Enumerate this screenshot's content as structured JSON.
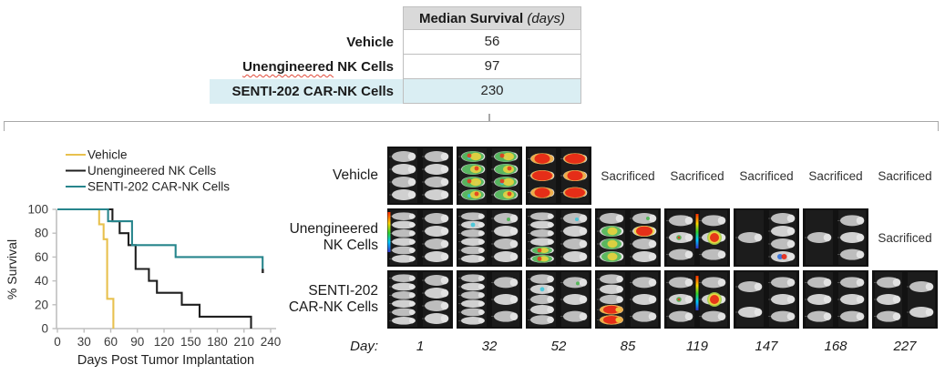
{
  "colors": {
    "vehicle": "#E8C14E",
    "unengineered": "#1f1f1f",
    "senti": "#27858C",
    "axis": "#bfbfbf",
    "tick_text": "#3a3a3a",
    "table_header_bg": "#D9D9D9",
    "table_highlight_bg": "#DAEEF3",
    "table_border": "#BFBFBF"
  },
  "table": {
    "header": {
      "title": "Median Survival",
      "unit": "(days)"
    },
    "rows": [
      {
        "label": "Vehicle",
        "value": "56",
        "highlight": false,
        "squiggle_word": ""
      },
      {
        "label": "Unengineered NK Cells",
        "value": "97",
        "highlight": false,
        "squiggle_word": "Unengineered"
      },
      {
        "label": "SENTI-202 CAR-NK Cells",
        "value": "230",
        "highlight": true,
        "squiggle_word": ""
      }
    ]
  },
  "chart_data": {
    "type": "line",
    "subtype": "kaplan-meier-step",
    "title": "",
    "xlabel": "Days Post Tumor Implantation",
    "ylabel": "% Survival",
    "xlim": [
      0,
      240
    ],
    "ylim": [
      0,
      100
    ],
    "xticks": [
      0,
      30,
      60,
      90,
      120,
      150,
      180,
      210,
      240
    ],
    "yticks": [
      0,
      20,
      40,
      60,
      80,
      100
    ],
    "grid": false,
    "legend_position": "top-left",
    "series": [
      {
        "name": "Vehicle",
        "color_key": "vehicle",
        "end_marker": false,
        "step_points": [
          [
            0,
            100
          ],
          [
            47,
            100
          ],
          [
            47,
            87.5
          ],
          [
            52,
            87.5
          ],
          [
            52,
            75
          ],
          [
            56,
            75
          ],
          [
            56,
            25
          ],
          [
            63,
            25
          ],
          [
            63,
            0
          ]
        ]
      },
      {
        "name": "Unengineered NK Cells",
        "color_key": "unengineered",
        "end_marker": false,
        "step_points": [
          [
            0,
            100
          ],
          [
            62,
            100
          ],
          [
            62,
            90
          ],
          [
            70,
            90
          ],
          [
            70,
            80
          ],
          [
            80,
            80
          ],
          [
            80,
            70
          ],
          [
            88,
            70
          ],
          [
            88,
            50
          ],
          [
            103,
            50
          ],
          [
            103,
            40
          ],
          [
            112,
            40
          ],
          [
            112,
            30
          ],
          [
            140,
            30
          ],
          [
            140,
            20
          ],
          [
            160,
            20
          ],
          [
            160,
            10
          ],
          [
            218,
            10
          ],
          [
            218,
            0
          ]
        ]
      },
      {
        "name": "SENTI-202 CAR-NK Cells",
        "color_key": "senti",
        "end_marker": true,
        "step_points": [
          [
            0,
            100
          ],
          [
            57,
            100
          ],
          [
            57,
            90
          ],
          [
            84,
            90
          ],
          [
            84,
            70
          ],
          [
            133,
            70
          ],
          [
            133,
            60
          ],
          [
            231,
            60
          ],
          [
            231,
            50
          ]
        ]
      }
    ]
  },
  "imaging": {
    "sacrificed_label": "Sacrificed",
    "day_prefix": "Day:",
    "days": [
      "1",
      "32",
      "52",
      "85",
      "119",
      "147",
      "168",
      "227"
    ],
    "rows": [
      {
        "label_lines": [
          "Vehicle"
        ],
        "cells": [
          {
            "type": "image",
            "l": 4,
            "r": 4,
            "heat": "none",
            "bar": ""
          },
          {
            "type": "image",
            "l": 4,
            "r": 4,
            "heat": "rainbow",
            "bar": ""
          },
          {
            "type": "image",
            "l": 3,
            "r": 3,
            "heat": "red",
            "bar": ""
          },
          {
            "type": "sacrificed"
          },
          {
            "type": "sacrificed"
          },
          {
            "type": "sacrificed"
          },
          {
            "type": "sacrificed"
          },
          {
            "type": "sacrificed"
          }
        ]
      },
      {
        "label_lines": [
          "Unengineered",
          "NK Cells"
        ],
        "cells": [
          {
            "type": "image",
            "l": 6,
            "r": 4,
            "heat": "none",
            "bar": "left"
          },
          {
            "type": "image",
            "l": 6,
            "r": 4,
            "heat": "specks",
            "bar": ""
          },
          {
            "type": "image",
            "l": 6,
            "r": 4,
            "heat": "mixed",
            "bar": ""
          },
          {
            "type": "image",
            "l": 4,
            "r": 4,
            "heat": "mixed-red",
            "bar": ""
          },
          {
            "type": "image",
            "l": 3,
            "r": 3,
            "heat": "red-spot",
            "bar": "center"
          },
          {
            "type": "image",
            "l": 1,
            "r": 4,
            "heat": "spot-small",
            "bar": ""
          },
          {
            "type": "image",
            "l": 1,
            "r": 3,
            "heat": "none",
            "bar": ""
          },
          {
            "type": "sacrificed"
          }
        ]
      },
      {
        "label_lines": [
          "SENTI-202",
          "CAR-NK Cells"
        ],
        "cells": [
          {
            "type": "image",
            "l": 6,
            "r": 4,
            "heat": "none",
            "bar": ""
          },
          {
            "type": "image",
            "l": 6,
            "r": 3,
            "heat": "none",
            "bar": ""
          },
          {
            "type": "image",
            "l": 5,
            "r": 3,
            "heat": "specks",
            "bar": ""
          },
          {
            "type": "image",
            "l": 5,
            "r": 3,
            "heat": "bottom-red",
            "bar": ""
          },
          {
            "type": "image",
            "l": 3,
            "r": 3,
            "heat": "red-spot",
            "bar": "center"
          },
          {
            "type": "image",
            "l": 2,
            "r": 3,
            "heat": "none",
            "bar": ""
          },
          {
            "type": "image",
            "l": 3,
            "r": 3,
            "heat": "none",
            "bar": ""
          },
          {
            "type": "image",
            "l": 3,
            "r": 2,
            "heat": "none",
            "bar": ""
          }
        ]
      }
    ]
  }
}
